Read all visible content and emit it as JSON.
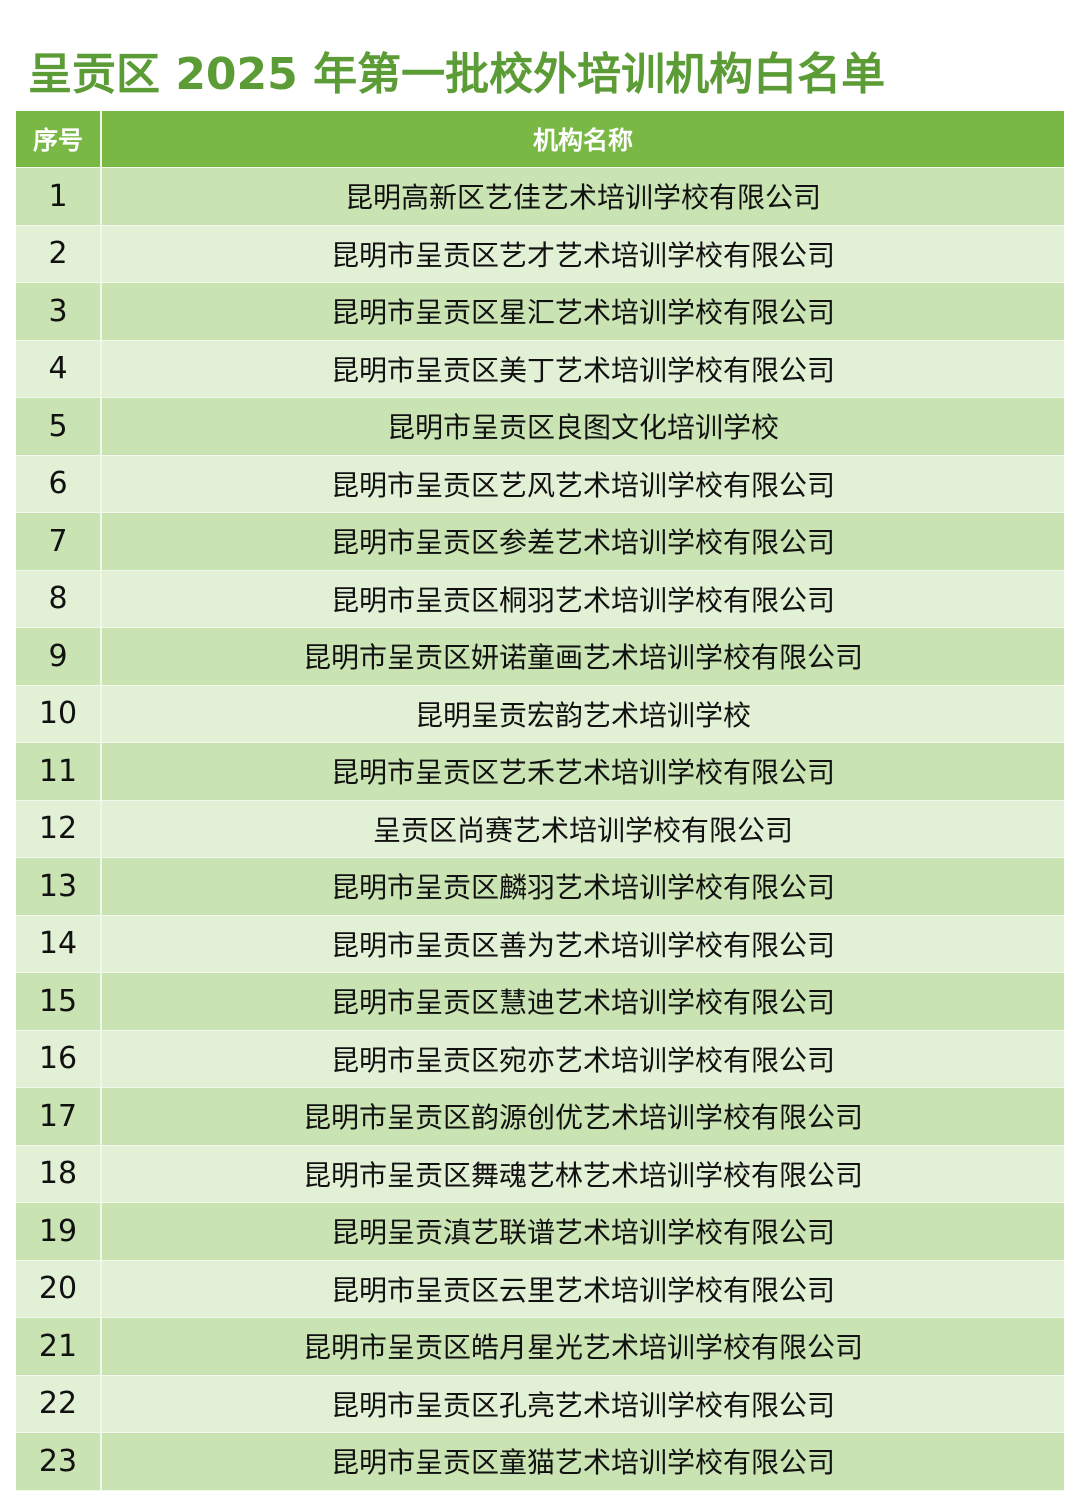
{
  "title": "呈贡区 2025 年第一批校外培训机构白名单",
  "table": {
    "headers": [
      "序号",
      "机构名称"
    ],
    "rows": [
      {
        "no": "1",
        "name": "昆明高新区艺佳艺术培训学校有限公司"
      },
      {
        "no": "2",
        "name": "昆明市呈贡区艺才艺术培训学校有限公司"
      },
      {
        "no": "3",
        "name": "昆明市呈贡区星汇艺术培训学校有限公司"
      },
      {
        "no": "4",
        "name": "昆明市呈贡区美丁艺术培训学校有限公司"
      },
      {
        "no": "5",
        "name": "昆明市呈贡区良图文化培训学校"
      },
      {
        "no": "6",
        "name": "昆明市呈贡区艺风艺术培训学校有限公司"
      },
      {
        "no": "7",
        "name": "昆明市呈贡区参差艺术培训学校有限公司"
      },
      {
        "no": "8",
        "name": "昆明市呈贡区桐羽艺术培训学校有限公司"
      },
      {
        "no": "9",
        "name": "昆明市呈贡区妍诺童画艺术培训学校有限公司"
      },
      {
        "no": "10",
        "name": "昆明呈贡宏韵艺术培训学校"
      },
      {
        "no": "11",
        "name": "昆明市呈贡区艺禾艺术培训学校有限公司"
      },
      {
        "no": "12",
        "name": "呈贡区尚赛艺术培训学校有限公司"
      },
      {
        "no": "13",
        "name": "昆明市呈贡区麟羽艺术培训学校有限公司"
      },
      {
        "no": "14",
        "name": "昆明市呈贡区善为艺术培训学校有限公司"
      },
      {
        "no": "15",
        "name": "昆明市呈贡区慧迪艺术培训学校有限公司"
      },
      {
        "no": "16",
        "name": "昆明市呈贡区宛亦艺术培训学校有限公司"
      },
      {
        "no": "17",
        "name": "昆明市呈贡区韵源创优艺术培训学校有限公司"
      },
      {
        "no": "18",
        "name": "昆明市呈贡区舞魂艺林艺术培训学校有限公司"
      },
      {
        "no": "19",
        "name": "昆明呈贡滇艺联谱艺术培训学校有限公司"
      },
      {
        "no": "20",
        "name": "昆明市呈贡区云里艺术培训学校有限公司"
      },
      {
        "no": "21",
        "name": "昆明市呈贡区皓月星光艺术培训学校有限公司"
      },
      {
        "no": "22",
        "name": "昆明市呈贡区孔亮艺术培训学校有限公司"
      },
      {
        "no": "23",
        "name": "昆明市呈贡区童猫艺术培训学校有限公司"
      }
    ]
  },
  "colors": {
    "title": "#5c9c36",
    "header_bg": "#79b845",
    "row_odd": "#c9e3b3",
    "row_even": "#e2f0d6"
  }
}
